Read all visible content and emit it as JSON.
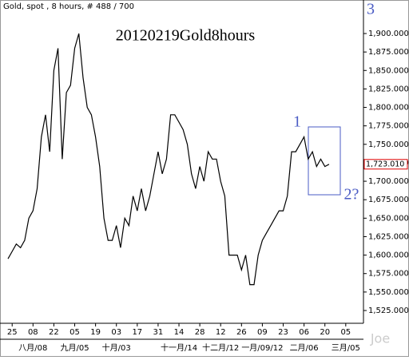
{
  "chart_data": {
    "type": "line",
    "header": "Gold, spot , 8 hours, # 488 / 700",
    "title": "20120219Gold8hours",
    "annotations": [
      "1",
      "2?",
      "3",
      "Joe"
    ],
    "color": "#000000",
    "categories": [
      null,
      "25",
      null,
      null,
      null,
      null,
      "08",
      null,
      null,
      null,
      null,
      "22",
      null,
      null,
      null,
      null,
      "05",
      null,
      null,
      null,
      null,
      "19",
      null,
      null,
      null,
      null,
      "03",
      null,
      null,
      null,
      null,
      "17",
      null,
      null,
      null,
      null,
      "31",
      null,
      null,
      null,
      null,
      "14",
      null,
      null,
      null,
      null,
      "28",
      null,
      null,
      null,
      null,
      "12",
      null,
      null,
      null,
      null,
      "26",
      null,
      null,
      null,
      null,
      "09",
      null,
      null,
      null,
      null,
      "23",
      null,
      null,
      null,
      null,
      "06",
      null,
      null,
      null,
      null,
      "20",
      null,
      null,
      null,
      null,
      "05",
      null,
      null,
      null
    ],
    "category_groups": [
      null,
      null,
      null,
      null,
      null,
      null,
      "八月/08",
      null,
      null,
      null,
      null,
      null,
      null,
      null,
      null,
      null,
      "九月/05",
      null,
      null,
      null,
      null,
      null,
      null,
      null,
      null,
      null,
      "十月/03",
      null,
      null,
      null,
      null,
      null,
      null,
      null,
      null,
      null,
      null,
      null,
      null,
      null,
      null,
      "十一月/14",
      null,
      null,
      null,
      null,
      null,
      null,
      null,
      null,
      null,
      "十二月/12",
      null,
      null,
      null,
      null,
      null,
      null,
      null,
      null,
      null,
      "一月/09/12",
      null,
      null,
      null,
      null,
      null,
      null,
      null,
      null,
      null,
      "二月/06",
      null,
      null,
      null,
      null,
      null,
      null,
      null,
      null,
      null,
      "三月/05",
      null,
      null,
      null
    ],
    "values": [
      1595,
      1605,
      1615,
      1610,
      1620,
      1650,
      1660,
      1690,
      1760,
      1790,
      1740,
      1850,
      1880,
      1730,
      1820,
      1830,
      1880,
      1900,
      1840,
      1800,
      1790,
      1760,
      1720,
      1650,
      1620,
      1620,
      1640,
      1610,
      1650,
      1640,
      1680,
      1660,
      1690,
      1660,
      1680,
      1710,
      1740,
      1710,
      1730,
      1790,
      1790,
      1780,
      1770,
      1750,
      1710,
      1690,
      1720,
      1700,
      1740,
      1730,
      1730,
      1700,
      1680,
      1600,
      1600,
      1600,
      1580,
      1600,
      1560,
      1560,
      1600,
      1620,
      1630,
      1640,
      1650,
      1660,
      1660,
      1680,
      1740,
      1740,
      1750,
      1760,
      1730,
      1740,
      1720,
      1730,
      1720,
      1723.01,
      null,
      null,
      null,
      null,
      null,
      null,
      null
    ],
    "last_value": 1723.01,
    "last_value_label": "1,723.010",
    "ylim": [
      1507.7,
      1945.4
    ],
    "yticks": [
      {
        "value": 1525,
        "label": "1,525.000"
      },
      {
        "value": 1550,
        "label": "1,550.000"
      },
      {
        "value": 1575,
        "label": "1,575.000"
      },
      {
        "value": 1600,
        "label": "1,600.000"
      },
      {
        "value": 1625,
        "label": "1,625.000"
      },
      {
        "value": 1650,
        "label": "1,650.000"
      },
      {
        "value": 1675,
        "label": "1,675.000"
      },
      {
        "value": 1700,
        "label": "1,700.000"
      },
      {
        "value": 1725,
        "label": "1,725.000"
      },
      {
        "value": 1750,
        "label": "1,750.000"
      },
      {
        "value": 1775,
        "label": "1,775.000"
      },
      {
        "value": 1800,
        "label": "1,800.000"
      },
      {
        "value": 1825,
        "label": "1,825.000"
      },
      {
        "value": 1850,
        "label": "1,850.000"
      },
      {
        "value": 1875,
        "label": "1,875.000"
      },
      {
        "value": 1900,
        "label": "1,900.000"
      }
    ]
  }
}
